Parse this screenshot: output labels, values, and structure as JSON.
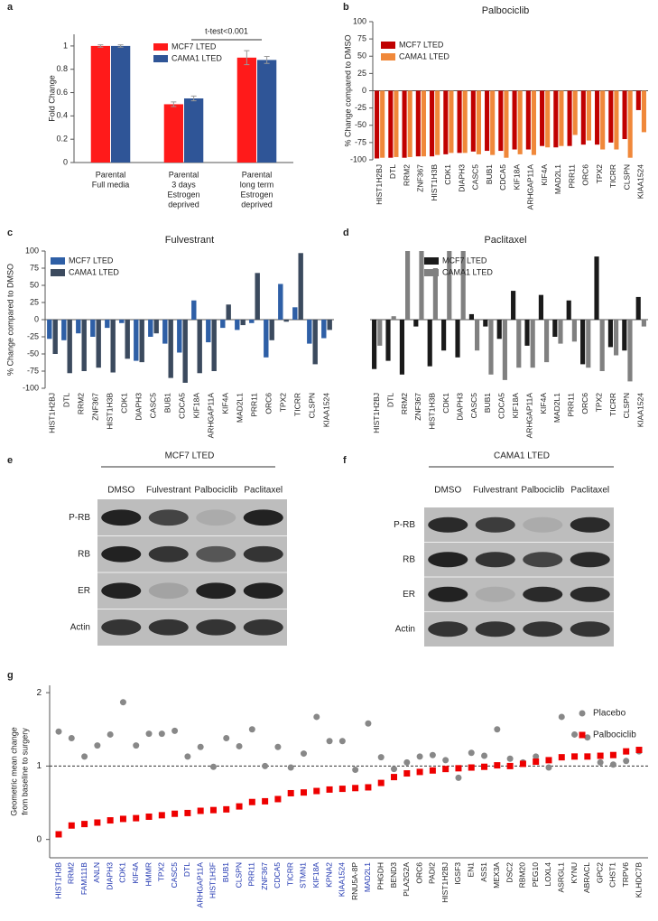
{
  "panel_labels": [
    "a",
    "b",
    "c",
    "d",
    "e",
    "f",
    "g"
  ],
  "chart_data": [
    {
      "type": "bar",
      "ylabel": "Fold Change",
      "categories": [
        [
          "Parental",
          "Full media"
        ],
        [
          "Parental",
          "3 days",
          "Estrogen",
          "deprived"
        ],
        [
          "Parental",
          "long term",
          "Estrogen",
          "deprived"
        ]
      ],
      "series": [
        {
          "name": "MCF7 LTED",
          "color": "#ff1a1a",
          "values": [
            1,
            0.5,
            0.9
          ],
          "errors": [
            0.01,
            0.02,
            0.06
          ]
        },
        {
          "name": "CAMA1 LTED",
          "color": "#2f5597",
          "values": [
            1,
            0.55,
            0.88
          ],
          "errors": [
            0.01,
            0.02,
            0.03
          ]
        }
      ],
      "ylim": [
        0,
        1.1
      ],
      "yticks": [
        0,
        0.2,
        0.4,
        0.6,
        0.8,
        1
      ],
      "annotation": "t-test<0.001"
    },
    {
      "type": "bar",
      "title": "Palbociclib",
      "ylabel": "% Change compared to DMSO",
      "categories": [
        "HIST1H2BJ",
        "DTL",
        "RRM2",
        "ZNF367",
        "HIST1H3B",
        "CDK1",
        "DIAPH3",
        "CASC5",
        "BUB1",
        "CDCA5",
        "KIF18A",
        "ARHGAP11A",
        "KIF4A",
        "MAD2L1",
        "PRR11",
        "ORC6",
        "TPX2",
        "TICRR",
        "CLSPN",
        "KIAA1524"
      ],
      "series": [
        {
          "name": "MCF7 LTED",
          "color": "#c00000",
          "values": [
            -98,
            -97,
            -97,
            -95,
            -95,
            -92,
            -90,
            -88,
            -87,
            -87,
            -85,
            -85,
            -80,
            -82,
            -80,
            -78,
            -78,
            -75,
            -70,
            -28
          ]
        },
        {
          "name": "CAMA1 LTED",
          "color": "#f0883a",
          "values": [
            -97,
            -96,
            -96,
            -95,
            -93,
            -90,
            -90,
            -92,
            -93,
            -97,
            -92,
            -93,
            -82,
            -80,
            -64,
            -72,
            -85,
            -85,
            -97,
            -60
          ]
        }
      ],
      "ylim": [
        -100,
        100
      ],
      "yticks": [
        -100,
        -75,
        -50,
        -25,
        0,
        25,
        50,
        75,
        100
      ]
    },
    {
      "type": "bar",
      "title": "Fulvestrant",
      "ylabel": "% Change compared to DMSO",
      "categories": [
        "HIST1H2BJ",
        "DTL",
        "RRM2",
        "ZNF367",
        "HIST1H3B",
        "CDK1",
        "DIAPH3",
        "CASC5",
        "BUB1",
        "CDCA5",
        "KIF18A",
        "ARHGAP11A",
        "KIF4A",
        "MAD2L1",
        "PRR11",
        "ORC6",
        "TPX2",
        "TICRR",
        "CLSPN",
        "KIAA1524"
      ],
      "series": [
        {
          "name": "MCF7 LTED",
          "color": "#2e5fa6",
          "values": [
            -28,
            -30,
            -20,
            -25,
            -12,
            -5,
            -60,
            -25,
            -35,
            -48,
            28,
            -33,
            -12,
            -15,
            -5,
            -55,
            52,
            18,
            -35,
            -27
          ]
        },
        {
          "name": "CAMA1 LTED",
          "color": "#3b4a5e",
          "values": [
            -50,
            -78,
            -75,
            -70,
            -77,
            -57,
            -62,
            -20,
            -85,
            -92,
            -78,
            -75,
            22,
            -8,
            68,
            -30,
            -3,
            97,
            -65,
            -15
          ]
        }
      ],
      "ylim": [
        -100,
        100
      ],
      "yticks": [
        -100,
        -75,
        -50,
        -25,
        0,
        25,
        50,
        75,
        100
      ]
    },
    {
      "type": "bar",
      "title": "Paclitaxel",
      "categories": [
        "HIST1H2BJ",
        "DTL",
        "RRM2",
        "ZNF367",
        "HIST1H3B",
        "CDK1",
        "DIAPH3",
        "CASC5",
        "BUB1",
        "CDCA5",
        "KIF18A",
        "ARHGAP11A",
        "KIF4A",
        "MAD2L1",
        "PRR11",
        "ORC6",
        "TPX2",
        "TICRR",
        "CLSPN",
        "KIAA1524"
      ],
      "series": [
        {
          "name": "MCF7 LTED",
          "color": "#1a1a1a",
          "values": [
            -72,
            -60,
            -80,
            -10,
            -68,
            -45,
            -55,
            8,
            -10,
            -28,
            42,
            -38,
            36,
            -25,
            28,
            -65,
            92,
            -40,
            -45,
            33
          ]
        },
        {
          "name": "CAMA1 LTED",
          "color": "#808080",
          "values": [
            -38,
            5,
            100,
            100,
            75,
            100,
            100,
            -45,
            -80,
            -88,
            -70,
            -70,
            -62,
            -35,
            -32,
            -70,
            -75,
            -52,
            -90,
            -10
          ]
        }
      ],
      "ylim": [
        -100,
        100
      ]
    },
    {
      "type": "scatter",
      "ylabel": [
        "Geometric mean change",
        "from baseline to surgery"
      ],
      "categories": [
        "HIST1H3B",
        "RRM2",
        "FAM111B",
        "ANLN",
        "DIAPH3",
        "CDK1",
        "KIF4A",
        "HMMR",
        "TPX2",
        "CASC5",
        "DTL",
        "ARHGAP11A",
        "HIST1H3F",
        "BUB1",
        "CLSPN",
        "PRR11",
        "ZNF367",
        "CDCA5",
        "TICRR",
        "STMN1",
        "KIF18A",
        "KPNA2",
        "KIAA1524",
        "RNU5A-8P",
        "MAD2L1",
        "PHGDH",
        "BEND3",
        "PLA2G2A",
        "ORC6",
        "PADI2",
        "HIST1H2BJ",
        "IGSF3",
        "EN1",
        "ASS1",
        "MEX3A",
        "DSC2",
        "RBM20",
        "PEG10",
        "LOXL4",
        "ASRGL1",
        "KYNU",
        "ABRACL",
        "GPC2",
        "CHST1",
        "TRPV6",
        "KLHDC7B"
      ],
      "category_colors": [
        "#1f35b0",
        "#1f35b0",
        "#1f35b0",
        "#1f35b0",
        "#1f35b0",
        "#1f35b0",
        "#1f35b0",
        "#1f35b0",
        "#1f35b0",
        "#1f35b0",
        "#1f35b0",
        "#1f35b0",
        "#1f35b0",
        "#1f35b0",
        "#1f35b0",
        "#1f35b0",
        "#1f35b0",
        "#1f35b0",
        "#1f35b0",
        "#1f35b0",
        "#1f35b0",
        "#1f35b0",
        "#1f35b0",
        "#222222",
        "#1f35b0",
        "#222222",
        "#222222",
        "#222222",
        "#222222",
        "#222222",
        "#222222",
        "#222222",
        "#222222",
        "#222222",
        "#222222",
        "#222222",
        "#222222",
        "#222222",
        "#222222",
        "#222222",
        "#222222",
        "#222222",
        "#222222",
        "#222222",
        "#222222",
        "#222222"
      ],
      "series": [
        {
          "name": "Placebo",
          "color": "#888888",
          "marker": "circle",
          "values": [
            1.47,
            1.38,
            1.13,
            1.28,
            1.43,
            1.87,
            1.28,
            1.44,
            1.44,
            1.48,
            1.13,
            1.26,
            0.99,
            1.38,
            1.27,
            1.5,
            1.0,
            1.26,
            0.98,
            1.17,
            1.67,
            1.34,
            1.34,
            0.95,
            1.58,
            1.12,
            0.96,
            1.05,
            1.13,
            1.15,
            1.08,
            0.84,
            1.18,
            1.14,
            1.5,
            1.1,
            1.05,
            1.13,
            0.98,
            1.67,
            1.43,
            1.39,
            1.05,
            1.02,
            1.07,
            1.2
          ]
        },
        {
          "name": "Palbociclib",
          "color": "#ee0000",
          "marker": "square",
          "values": [
            0.07,
            0.19,
            0.21,
            0.23,
            0.26,
            0.28,
            0.29,
            0.31,
            0.33,
            0.35,
            0.36,
            0.39,
            0.4,
            0.41,
            0.45,
            0.51,
            0.52,
            0.55,
            0.63,
            0.64,
            0.66,
            0.68,
            0.69,
            0.7,
            0.71,
            0.77,
            0.85,
            0.9,
            0.92,
            0.94,
            0.96,
            0.97,
            0.98,
            0.99,
            1.01,
            1.0,
            1.03,
            1.06,
            1.08,
            1.12,
            1.13,
            1.13,
            1.14,
            1.15,
            1.2,
            1.22
          ]
        }
      ],
      "ylim": [
        -0.25,
        2.1
      ],
      "yticks": [
        0,
        1,
        2
      ],
      "refline": 1
    }
  ],
  "blots": [
    {
      "title": "MCF7 LTED",
      "lanes": [
        "DMSO",
        "Fulvestrant",
        "Palbociclib",
        "Paclitaxel"
      ],
      "rows": [
        "P-RB",
        "RB",
        "ER",
        "Actin"
      ]
    },
    {
      "title": "CAMA1 LTED",
      "lanes": [
        "DMSO",
        "Fulvestrant",
        "Palbociclib",
        "Paclitaxel"
      ],
      "rows": [
        "P-RB",
        "RB",
        "ER",
        "Actin"
      ]
    }
  ]
}
